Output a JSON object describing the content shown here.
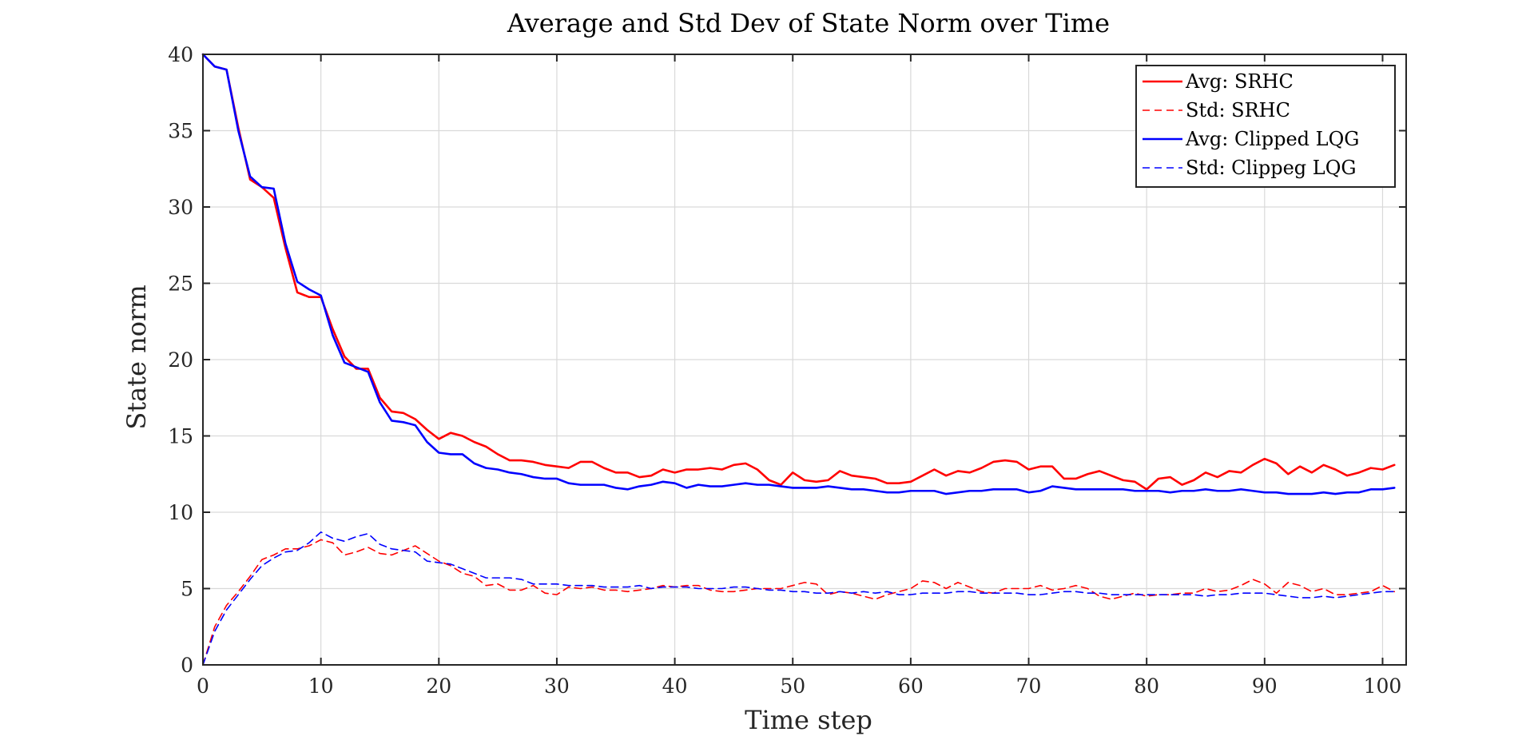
{
  "chart_data": {
    "type": "line",
    "title": "Average and Std Dev of State Norm over Time",
    "xlabel": "Time step",
    "ylabel": "State norm",
    "xlim": [
      0,
      102
    ],
    "ylim": [
      0,
      40
    ],
    "xticks": [
      0,
      10,
      20,
      30,
      40,
      50,
      60,
      70,
      80,
      90,
      100
    ],
    "yticks": [
      0,
      5,
      10,
      15,
      20,
      25,
      30,
      35,
      40
    ],
    "grid": true,
    "legend_position": "top-right",
    "x": [
      0,
      1,
      2,
      3,
      4,
      5,
      6,
      7,
      8,
      9,
      10,
      11,
      12,
      13,
      14,
      15,
      16,
      17,
      18,
      19,
      20,
      21,
      22,
      23,
      24,
      25,
      26,
      27,
      28,
      29,
      30,
      31,
      32,
      33,
      34,
      35,
      36,
      37,
      38,
      39,
      40,
      41,
      42,
      43,
      44,
      45,
      46,
      47,
      48,
      49,
      50,
      51,
      52,
      53,
      54,
      55,
      56,
      57,
      58,
      59,
      60,
      61,
      62,
      63,
      64,
      65,
      66,
      67,
      68,
      69,
      70,
      71,
      72,
      73,
      74,
      75,
      76,
      77,
      78,
      79,
      80,
      81,
      82,
      83,
      84,
      85,
      86,
      87,
      88,
      89,
      90,
      91,
      92,
      93,
      94,
      95,
      96,
      97,
      98,
      99,
      100,
      101
    ],
    "series": [
      {
        "name": "Avg: SRHC",
        "color": "#ff0000",
        "dash": "solid",
        "values": [
          40.0,
          39.2,
          39.0,
          35.2,
          31.8,
          31.3,
          30.6,
          27.3,
          24.4,
          24.1,
          24.1,
          22.0,
          20.2,
          19.4,
          19.4,
          17.5,
          16.6,
          16.5,
          16.1,
          15.4,
          14.8,
          15.2,
          15.0,
          14.6,
          14.3,
          13.8,
          13.4,
          13.4,
          13.3,
          13.1,
          13.0,
          12.9,
          13.3,
          13.3,
          12.9,
          12.6,
          12.6,
          12.3,
          12.4,
          12.8,
          12.6,
          12.8,
          12.8,
          12.9,
          12.8,
          13.1,
          13.2,
          12.8,
          12.1,
          11.8,
          12.6,
          12.1,
          12.0,
          12.1,
          12.7,
          12.4,
          12.3,
          12.2,
          11.9,
          11.9,
          12.0,
          12.4,
          12.8,
          12.4,
          12.7,
          12.6,
          12.9,
          13.3,
          13.4,
          13.3,
          12.8,
          13.0,
          13.0,
          12.2,
          12.2,
          12.5,
          12.7,
          12.4,
          12.1,
          12.0,
          11.5,
          12.2,
          12.3,
          11.8,
          12.1,
          12.6,
          12.3,
          12.7,
          12.6,
          13.1,
          13.5,
          13.2,
          12.5,
          13.0,
          12.6,
          13.1,
          12.8,
          12.4,
          12.6,
          12.9,
          12.8,
          13.1
        ]
      },
      {
        "name": "Std: SRHC",
        "color": "#ff0000",
        "dash": "dashed",
        "values": [
          0.0,
          2.5,
          3.9,
          4.8,
          5.8,
          6.9,
          7.2,
          7.6,
          7.6,
          7.8,
          8.2,
          8.0,
          7.2,
          7.4,
          7.7,
          7.3,
          7.2,
          7.5,
          7.8,
          7.3,
          6.8,
          6.5,
          6.0,
          5.8,
          5.2,
          5.3,
          4.9,
          4.9,
          5.2,
          4.7,
          4.6,
          5.1,
          5.0,
          5.1,
          4.9,
          4.9,
          4.8,
          4.9,
          5.0,
          5.2,
          5.1,
          5.2,
          5.2,
          4.9,
          4.8,
          4.8,
          4.9,
          5.0,
          5.0,
          5.0,
          5.2,
          5.4,
          5.3,
          4.6,
          4.8,
          4.7,
          4.5,
          4.3,
          4.6,
          4.8,
          5.0,
          5.5,
          5.4,
          5.0,
          5.4,
          5.1,
          4.8,
          4.7,
          5.0,
          5.0,
          5.0,
          5.2,
          4.9,
          5.0,
          5.2,
          5.0,
          4.5,
          4.3,
          4.5,
          4.7,
          4.5,
          4.6,
          4.6,
          4.7,
          4.7,
          5.0,
          4.8,
          4.9,
          5.2,
          5.6,
          5.3,
          4.7,
          5.4,
          5.2,
          4.8,
          5.0,
          4.6,
          4.6,
          4.7,
          4.8,
          5.2,
          4.8
        ]
      },
      {
        "name": "Avg: Clipped LQG",
        "color": "#0000ff",
        "dash": "solid",
        "values": [
          40.0,
          39.2,
          39.0,
          35.0,
          32.0,
          31.3,
          31.2,
          27.6,
          25.1,
          24.6,
          24.2,
          21.6,
          19.8,
          19.5,
          19.2,
          17.2,
          16.0,
          15.9,
          15.7,
          14.6,
          13.9,
          13.8,
          13.8,
          13.2,
          12.9,
          12.8,
          12.6,
          12.5,
          12.3,
          12.2,
          12.2,
          11.9,
          11.8,
          11.8,
          11.8,
          11.6,
          11.5,
          11.7,
          11.8,
          12.0,
          11.9,
          11.6,
          11.8,
          11.7,
          11.7,
          11.8,
          11.9,
          11.8,
          11.8,
          11.7,
          11.6,
          11.6,
          11.6,
          11.7,
          11.6,
          11.5,
          11.5,
          11.4,
          11.3,
          11.3,
          11.4,
          11.4,
          11.4,
          11.2,
          11.3,
          11.4,
          11.4,
          11.5,
          11.5,
          11.5,
          11.3,
          11.4,
          11.7,
          11.6,
          11.5,
          11.5,
          11.5,
          11.5,
          11.5,
          11.4,
          11.4,
          11.4,
          11.3,
          11.4,
          11.4,
          11.5,
          11.4,
          11.4,
          11.5,
          11.4,
          11.3,
          11.3,
          11.2,
          11.2,
          11.2,
          11.3,
          11.2,
          11.3,
          11.3,
          11.5,
          11.5,
          11.6
        ]
      },
      {
        "name": "Std: Clippeg LQG",
        "color": "#0000ff",
        "dash": "dashed",
        "values": [
          0.0,
          2.2,
          3.6,
          4.6,
          5.6,
          6.5,
          7.0,
          7.4,
          7.5,
          8.0,
          8.7,
          8.3,
          8.1,
          8.4,
          8.6,
          7.9,
          7.6,
          7.5,
          7.4,
          6.8,
          6.7,
          6.6,
          6.3,
          6.0,
          5.7,
          5.7,
          5.7,
          5.6,
          5.3,
          5.3,
          5.3,
          5.2,
          5.2,
          5.2,
          5.1,
          5.1,
          5.1,
          5.2,
          5.0,
          5.1,
          5.1,
          5.1,
          5.0,
          5.0,
          5.0,
          5.1,
          5.1,
          5.0,
          4.9,
          4.9,
          4.8,
          4.8,
          4.7,
          4.7,
          4.8,
          4.7,
          4.8,
          4.7,
          4.8,
          4.6,
          4.6,
          4.7,
          4.7,
          4.7,
          4.8,
          4.8,
          4.7,
          4.7,
          4.7,
          4.7,
          4.6,
          4.6,
          4.7,
          4.8,
          4.8,
          4.7,
          4.7,
          4.6,
          4.6,
          4.6,
          4.6,
          4.6,
          4.6,
          4.6,
          4.6,
          4.5,
          4.6,
          4.6,
          4.7,
          4.7,
          4.7,
          4.6,
          4.5,
          4.4,
          4.4,
          4.5,
          4.4,
          4.5,
          4.6,
          4.7,
          4.8,
          4.8
        ]
      }
    ]
  }
}
